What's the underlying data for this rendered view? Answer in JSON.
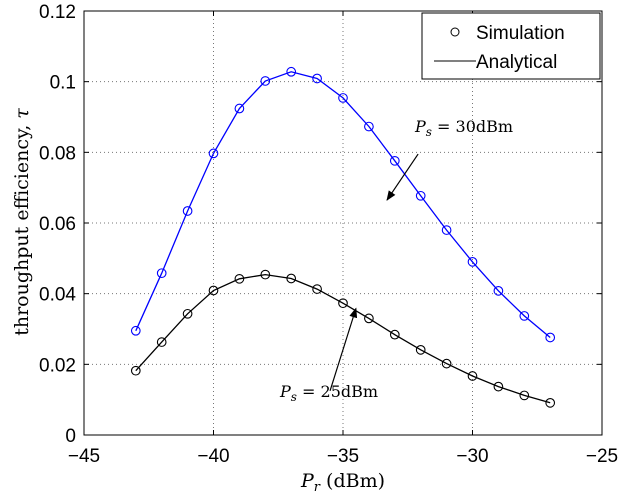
{
  "chart_data": {
    "type": "line",
    "title": "",
    "xlabel": {
      "main": "P",
      "sub": "r",
      "unit": " (dBm)"
    },
    "ylabel": {
      "text": "throughput efficiency, ",
      "symbol": "τ"
    },
    "xlim": [
      -45,
      -25
    ],
    "ylim": [
      0,
      0.12
    ],
    "x_ticks": [
      -45,
      -40,
      -35,
      -30,
      -25
    ],
    "x_tick_labels": [
      "−45",
      "−40",
      "−35",
      "−30",
      "−25"
    ],
    "y_ticks": [
      0,
      0.02,
      0.04,
      0.06,
      0.08,
      0.1,
      0.12
    ],
    "y_tick_labels": [
      "0",
      "0.02",
      "0.04",
      "0.06",
      "0.08",
      "0.1",
      "0.12"
    ],
    "grid": true,
    "grid_style": "dotted",
    "legend": {
      "placement": "top-right",
      "entries": [
        {
          "label": "Simulation",
          "marker": "circle"
        },
        {
          "label": "Analytical",
          "marker": "line"
        }
      ]
    },
    "x": [
      -43,
      -42,
      -41,
      -40,
      -39,
      -38,
      -37,
      -36,
      -35,
      -34,
      -33,
      -32,
      -31,
      -30,
      -29,
      -28,
      -27
    ],
    "series": [
      {
        "key": "ps30",
        "color": "#0000ff",
        "values": [
          0.0295,
          0.0458,
          0.0634,
          0.0797,
          0.0924,
          0.1002,
          0.1028,
          0.1009,
          0.0954,
          0.0873,
          0.0776,
          0.0677,
          0.058,
          0.049,
          0.0408,
          0.0337,
          0.0276
        ]
      },
      {
        "key": "ps25",
        "color": "#000000",
        "values": [
          0.0182,
          0.0263,
          0.0343,
          0.0409,
          0.0442,
          0.0454,
          0.0443,
          0.0413,
          0.0373,
          0.033,
          0.0284,
          0.0241,
          0.0202,
          0.0167,
          0.0137,
          0.0112,
          0.0091
        ]
      }
    ],
    "annotations": [
      {
        "main": "P",
        "sub": "s",
        "rest": " = 30dBm",
        "arrow_from": [
          -32.1,
          0.0795
        ],
        "arrow_to": [
          -33.3,
          0.0665
        ]
      },
      {
        "main": "P",
        "sub": "s",
        "rest": " = 25dBm",
        "arrow_from": [
          -35.5,
          0.0125
        ],
        "arrow_to": [
          -34.5,
          0.0358
        ]
      }
    ]
  }
}
